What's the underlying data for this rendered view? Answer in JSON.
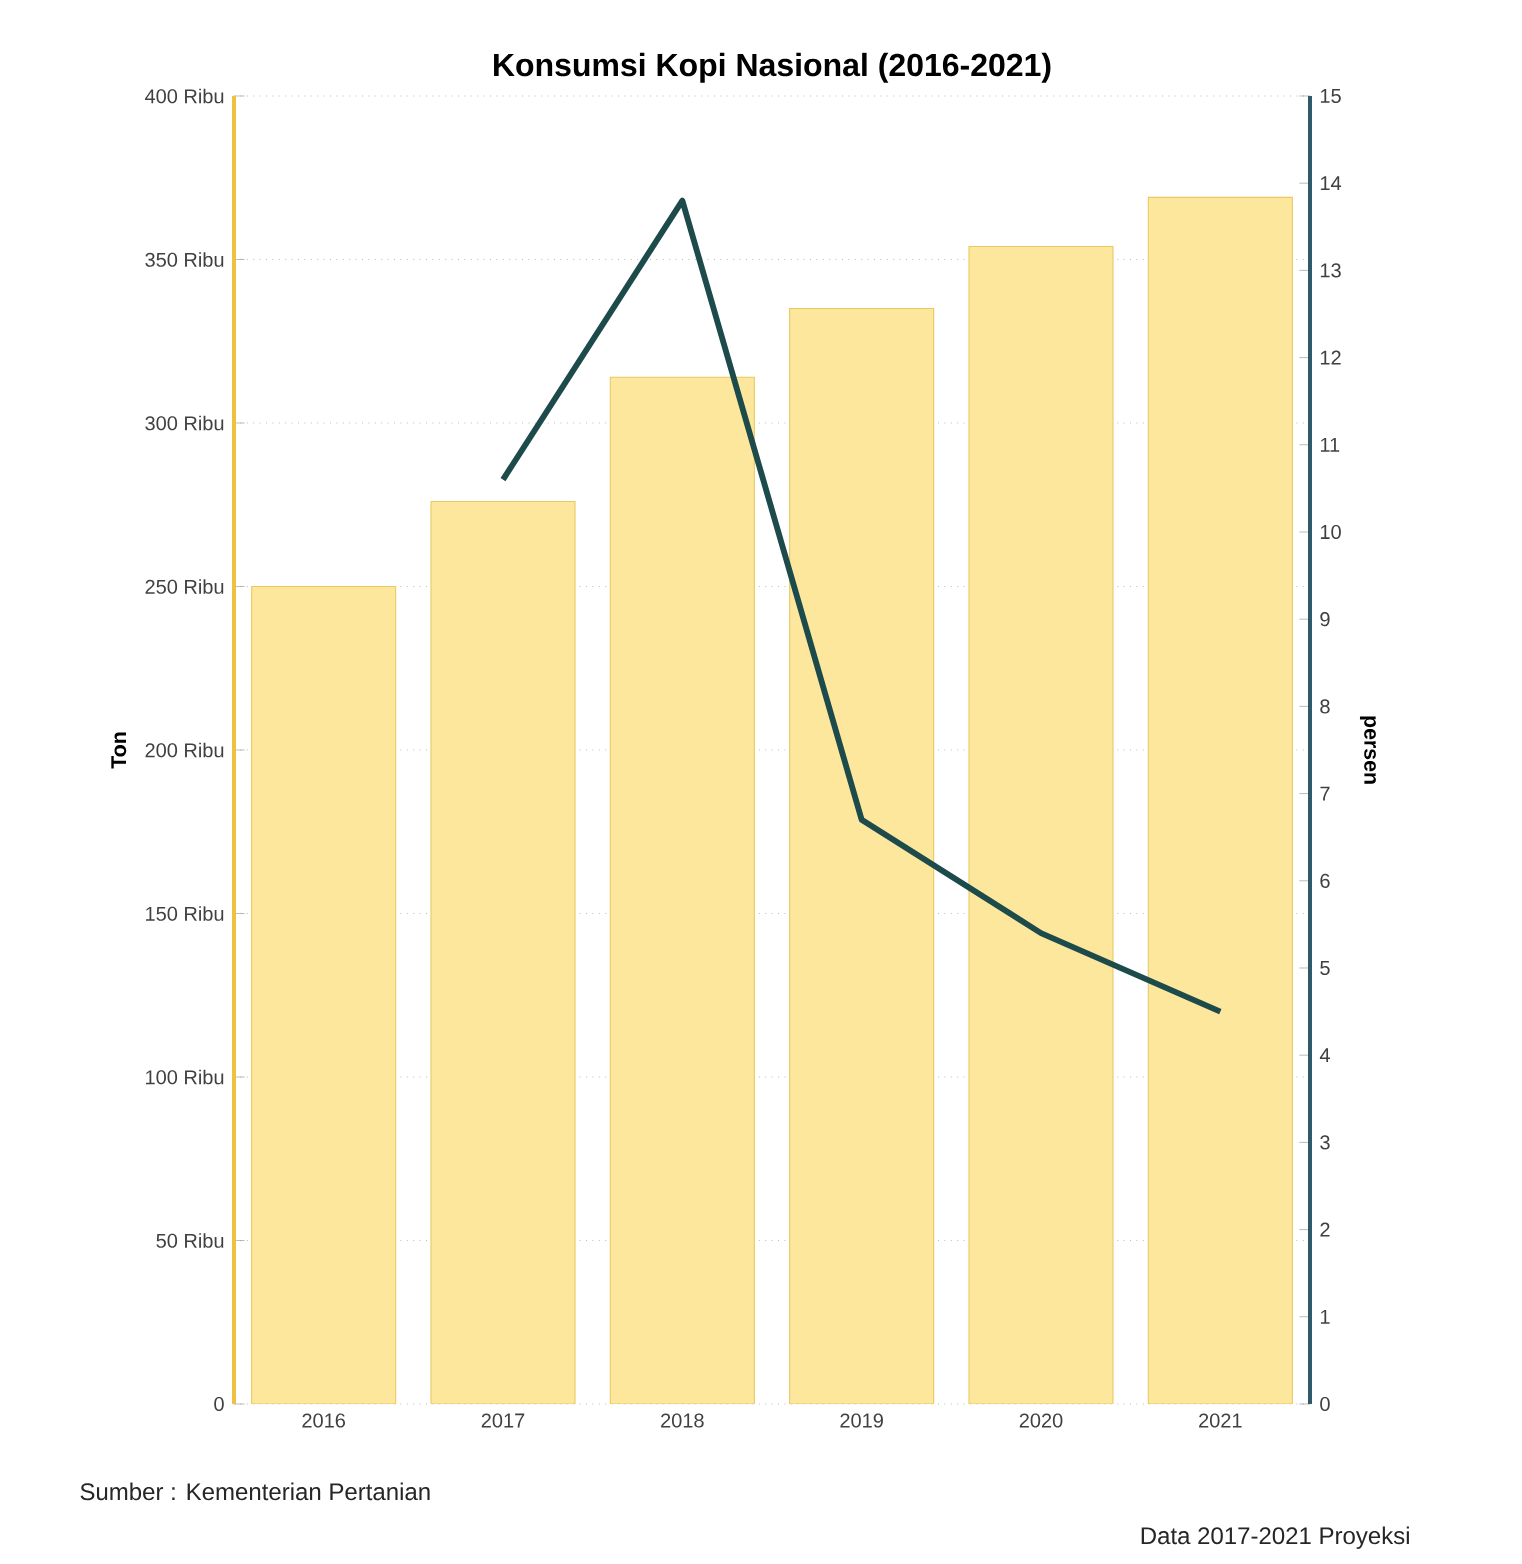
{
  "chart_data": {
    "type": "bar",
    "title": "Konsumsi Kopi Nasional (2016-2021)",
    "ylabel": "Ton",
    "y2label": "persen",
    "categories": [
      "2016",
      "2017",
      "2018",
      "2019",
      "2020",
      "2021"
    ],
    "series": [
      {
        "color": "#fce79c",
        "values": [
          250,
          276,
          314,
          335,
          354,
          369
        ]
      },
      {
        "type": "line",
        "axis": "y2",
        "color": "#1d4a4b",
        "values": [
          null,
          10.6,
          13.8,
          6.7,
          5.4,
          4.5
        ]
      }
    ],
    "ylim": [
      0,
      400
    ],
    "yticks": [
      0,
      {
        "value": 50,
        "label": "50 Ribu"
      },
      {
        "value": 100,
        "label": "100 Ribu"
      },
      {
        "value": 150,
        "label": "150 Ribu"
      },
      {
        "value": 200,
        "label": "200 Ribu"
      },
      {
        "value": 250,
        "label": "250 Ribu"
      },
      {
        "value": 300,
        "label": "300 Ribu"
      },
      {
        "value": 350,
        "label": "350 Ribu"
      },
      {
        "value": 400,
        "label": "400 Ribu"
      }
    ],
    "y2lim": [
      0,
      15
    ],
    "y2ticks": [
      0,
      1,
      2,
      3,
      4,
      5,
      6,
      7,
      8,
      9,
      10,
      11,
      12,
      13,
      14,
      15
    ],
    "grid": "y",
    "line_style": "solid",
    "annotations": [
      "Sumber : Kementerian Pertanian",
      "Data 2017-2021 Proyeksi"
    ]
  }
}
